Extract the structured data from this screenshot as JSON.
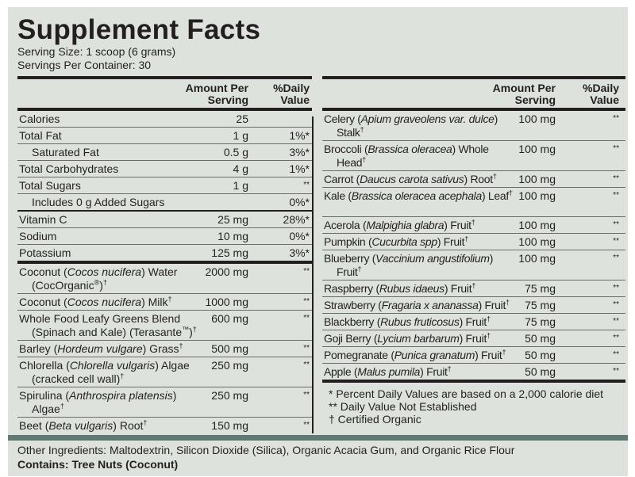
{
  "title": "Supplement Facts",
  "serving_size": "Serving Size: 1 scoop (6 grams)",
  "servings_per_container": "Servings Per Container: 30",
  "headers": {
    "amount": "Amount Per",
    "amount2": "Serving",
    "dv": "%Daily",
    "dv2": "Value"
  },
  "left_rows": [
    {
      "pre": "Calories",
      "amt": "25",
      "dv": "",
      "h": 20
    },
    {
      "pre": "Total Fat",
      "amt": "1 g",
      "dv": "1%*",
      "h": 20
    },
    {
      "pre": "Saturated Fat",
      "amt": "0.5 g",
      "dv": "3%*",
      "h": 20,
      "indent": true
    },
    {
      "pre": "Total Carbohydrates",
      "amt": "4 g",
      "dv": "1%*",
      "h": 20
    },
    {
      "pre": "Total Sugars",
      "amt": "1 g",
      "dv": "**",
      "h": 20
    },
    {
      "pre": "Includes 0 g Added Sugars",
      "amt": "",
      "dv": "0%*",
      "h": 20,
      "indent": true
    },
    {
      "pre": "Vitamin C",
      "amt": "25 mg",
      "dv": "28%*",
      "h": 20,
      "heavy": true
    },
    {
      "pre": "Sodium",
      "amt": "10 mg",
      "dv": "0%*",
      "h": 20
    },
    {
      "pre": "Potassium",
      "amt": "125 mg",
      "dv": "3%*",
      "h": 20
    },
    {
      "pre": "Coconut (",
      "it": "Cocos nucifera",
      "post": ") Water (CocOrganic",
      "sup0": "®",
      "post2": ")",
      "sup": "†",
      "amt": "2000 mg",
      "dv": "**",
      "h": 37,
      "thick": true
    },
    {
      "pre": "Coconut (",
      "it": "Cocos nucifera",
      "post": ") Milk",
      "sup": "†",
      "amt": "1000 mg",
      "dv": "**",
      "h": 20
    },
    {
      "pre": "Whole Food Leafy Greens Blend (Spinach and Kale) (Terasante",
      "sup0": "™",
      "post2": ")",
      "sup": "†",
      "amt": "600 mg",
      "dv": "**",
      "h": 37
    },
    {
      "pre": "Barley (",
      "it": "Hordeum vulgare",
      "post": ") Grass",
      "sup": "†",
      "amt": "500 mg",
      "dv": "**",
      "h": 20
    },
    {
      "pre": "Chlorella (",
      "it": "Chlorella vulgaris",
      "post": ") Algae (cracked cell wall)",
      "sup": "†",
      "amt": "250 mg",
      "dv": "**",
      "h": 37
    },
    {
      "pre": "Spirulina (",
      "it": "Anthrospira platensis",
      "post": ") Algae",
      "sup": "†",
      "amt": "250 mg",
      "dv": "**",
      "h": 37
    },
    {
      "pre": "Beet (",
      "it": "Beta vulgaris",
      "post": ") Root",
      "sup": "†",
      "amt": "150 mg",
      "dv": "**",
      "h": 21
    }
  ],
  "right_rows": [
    {
      "pre": "Celery (",
      "it": "Apium graveolens var. dulce",
      "post": ") Stalk",
      "sup": "†",
      "amt": "100 mg",
      "dv": "**",
      "h": 37
    },
    {
      "pre": "Broccoli (",
      "it": "Brassica oleracea",
      "post": ") Whole Head",
      "sup": "†",
      "amt": "100 mg",
      "dv": "**",
      "h": 36
    },
    {
      "pre": "Carrot (",
      "it": "Daucus carota sativus",
      "post": ") Root",
      "sup": "†",
      "amt": "100 mg",
      "dv": "**",
      "h": 20
    },
    {
      "pre": "Kale (",
      "it": "Brassica oleracea acephala",
      "post": ") Leaf",
      "sup": "†",
      "amt": "100 mg",
      "dv": "**",
      "h": 37
    },
    {
      "pre": "Acerola (",
      "it": "Malpighia glabra",
      "post": ") Fruit",
      "sup": "†",
      "amt": "100 mg",
      "dv": "**",
      "h": 20
    },
    {
      "pre": "Pumpkin (",
      "it": "Cucurbita spp",
      "post": ") Fruit",
      "sup": "†",
      "amt": "100 mg",
      "dv": "**",
      "h": 20
    },
    {
      "pre": "Blueberry (",
      "it": "Vaccinium angustifolium",
      "post": ") Fruit",
      "sup": "†",
      "amt": "100 mg",
      "dv": "**",
      "h": 37
    },
    {
      "pre": "Raspberry (",
      "it": "Rubus idaeus",
      "post": ") Fruit",
      "sup": "†",
      "amt": "75 mg",
      "dv": "**",
      "h": 20
    },
    {
      "pre": "Strawberry (",
      "it": "Fragaria x ananassa",
      "post": ") Fruit",
      "sup": "†",
      "amt": "75 mg",
      "dv": "**",
      "h": 20
    },
    {
      "pre": "Blackberry (",
      "it": "Rubus fruticosus",
      "post": ") Fruit",
      "sup": "†",
      "amt": "75 mg",
      "dv": "**",
      "h": 20
    },
    {
      "pre": "Goji Berry (",
      "it": "Lycium barbarum",
      "post": ") Fruit",
      "sup": "†",
      "amt": "50 mg",
      "dv": "**",
      "h": 20
    },
    {
      "pre": "Pomegranate (",
      "it": "Punica granatum",
      "post": ") Fruit",
      "sup": "†",
      "amt": "50 mg",
      "dv": "**",
      "h": 20
    },
    {
      "pre": "Apple (",
      "it": "Malus pumila",
      "post": ") Fruit",
      "sup": "†",
      "amt": "50 mg",
      "dv": "**",
      "h": 21
    }
  ],
  "footnotes": [
    "* Percent Daily Values are based on a 2,000 calorie diet",
    "** Daily Value Not Established",
    "† Certified Organic"
  ],
  "other_ingredients": "Other Ingredients: Maltodextrin, Silicon Dioxide (Silica), Organic Acacia Gum, and Organic Rice Flour",
  "contains": "Contains: Tree Nuts (Coconut)",
  "colors": {
    "background": "#dde3dc",
    "band": "#5f7a72",
    "text": "#231f20"
  }
}
